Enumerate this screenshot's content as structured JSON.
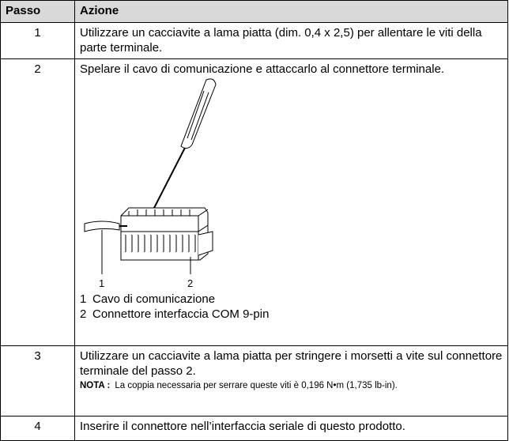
{
  "table": {
    "headers": [
      "Passo",
      "Azione"
    ],
    "rows": [
      {
        "step": "1",
        "action": "Utilizzare un cacciavite a lama piatta (dim. 0,4 x 2,5) per allentare le viti della parte terminale."
      },
      {
        "step": "2",
        "action": "Spelare il cavo di comunicazione e attaccarlo al connettore terminale.",
        "figure": {
          "callouts": [
            "1",
            "2"
          ],
          "legend": [
            {
              "number": "1",
              "text": "Cavo di comunicazione"
            },
            {
              "number": "2",
              "text": "Connettore interfaccia COM 9-pin"
            }
          ]
        }
      },
      {
        "step": "3",
        "action": "Utilizzare un cacciavite a lama piatta per stringere i morsetti a vite sul connettore terminale del passo 2.",
        "note": {
          "label": "NOTA :",
          "text": "La coppia necessaria per serrare queste viti è 0,196 N•m (1,735 lb-in)."
        }
      },
      {
        "step": "4",
        "action": "Inserire il connettore nell’interfaccia seriale di questo prodotto."
      }
    ]
  }
}
